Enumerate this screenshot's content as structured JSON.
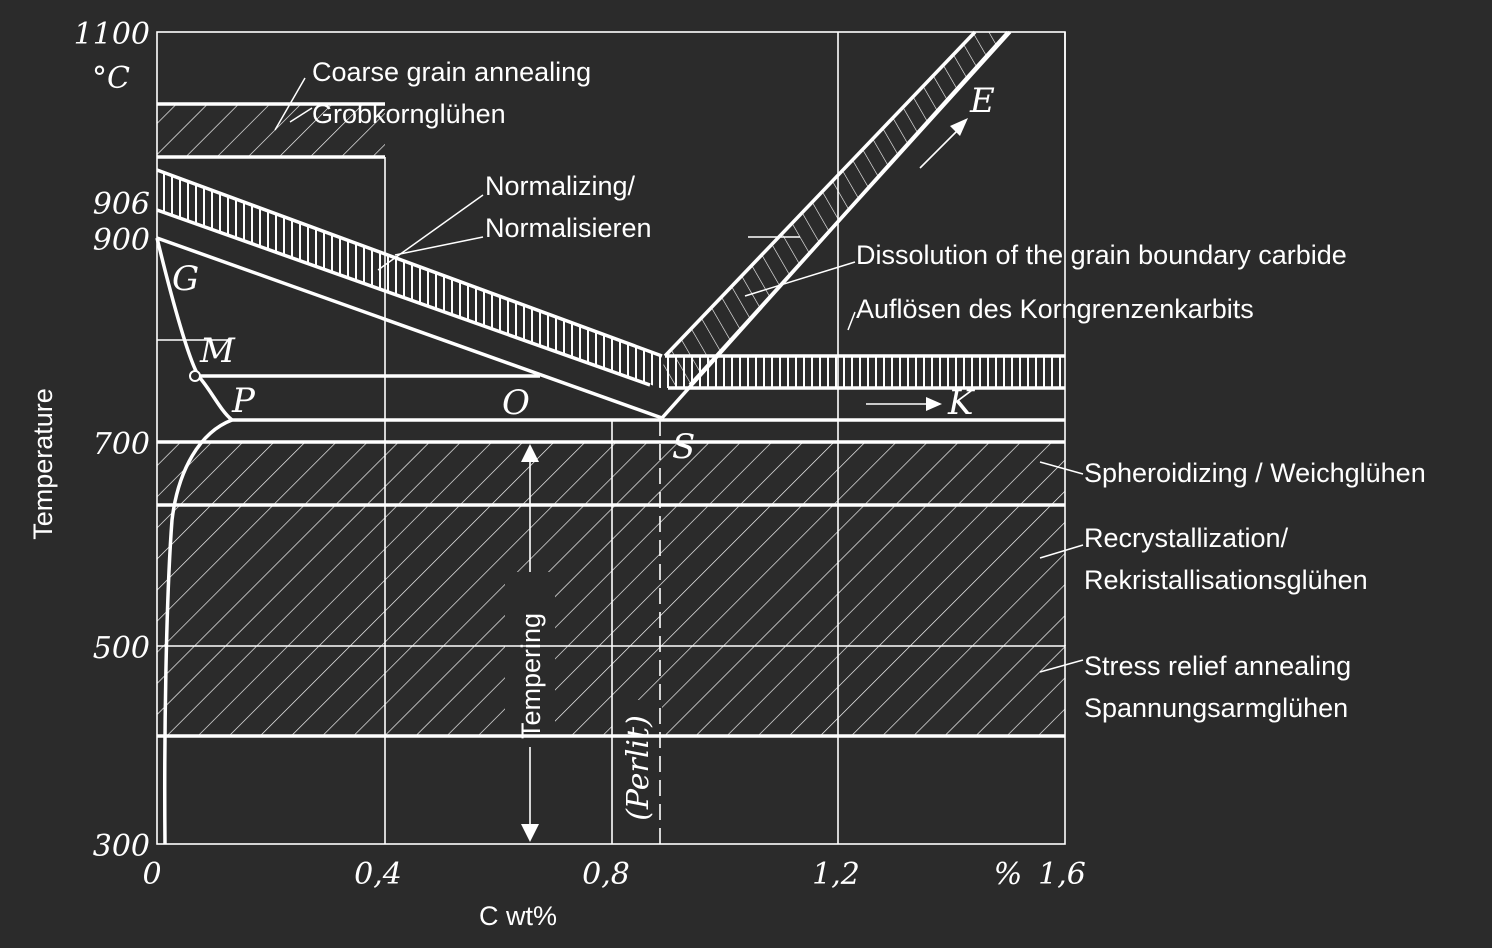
{
  "axes": {
    "y_title": "Temperature",
    "y_unit": "°C",
    "x_title": "C wt%",
    "x_unit": "%",
    "y_ticks": [
      "1100",
      "906",
      "900",
      "700",
      "500",
      "300"
    ],
    "x_ticks": [
      "0",
      "0,4",
      "0,8",
      "1,2",
      "1,6"
    ]
  },
  "points": {
    "G": "G",
    "M": "M",
    "P": "P",
    "O": "O",
    "S": "S",
    "E": "E",
    "K": "K"
  },
  "labels": {
    "coarse_en": "Coarse grain annealing",
    "coarse_de": "Grobkornglühen",
    "norm_en": "Normalizing/",
    "norm_de": "Normalisieren",
    "diss_en": "Dissolution of the grain boundary carbide",
    "diss_de": "Auflösen des Korngrenzenkarbits",
    "spher": "Spheroidizing / Weichglühen",
    "recr_en": "Recrystallization/",
    "recr_de": "Rekristallisationsglühen",
    "stress_en": "Stress relief annealing",
    "stress_de": "Spannungsarmglühen",
    "tempering": "Tempering",
    "perlit": "(Perlit)"
  }
}
